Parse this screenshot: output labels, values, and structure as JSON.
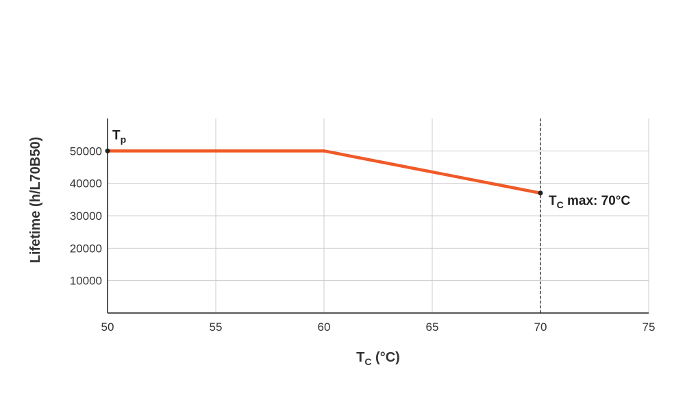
{
  "chart_data": {
    "type": "line",
    "xlabel": {
      "main": "T",
      "sub": "C",
      "suffix": " (°C)"
    },
    "ylabel": "Lifetime (h/L70B50)",
    "xlim": [
      50,
      75
    ],
    "ylim": [
      0,
      60000
    ],
    "x_ticks": [
      "50",
      "55",
      "60",
      "65",
      "70",
      "75"
    ],
    "y_ticks": [
      "10000",
      "20000",
      "30000",
      "40000",
      "50000"
    ],
    "grid": true,
    "series": [
      {
        "x": [
          50,
          60,
          70
        ],
        "y": [
          50000,
          50000,
          37000
        ],
        "color": "#f05a28"
      }
    ],
    "annotations": [
      {
        "main": "T",
        "sub": "p",
        "suffix": "",
        "x": 50,
        "y": 50000
      },
      {
        "main": "T",
        "sub": "C",
        "suffix": " max: 70°C",
        "x": 70,
        "y": 37000
      }
    ],
    "reference_line": {
      "x": 70,
      "style": "dashed"
    }
  }
}
